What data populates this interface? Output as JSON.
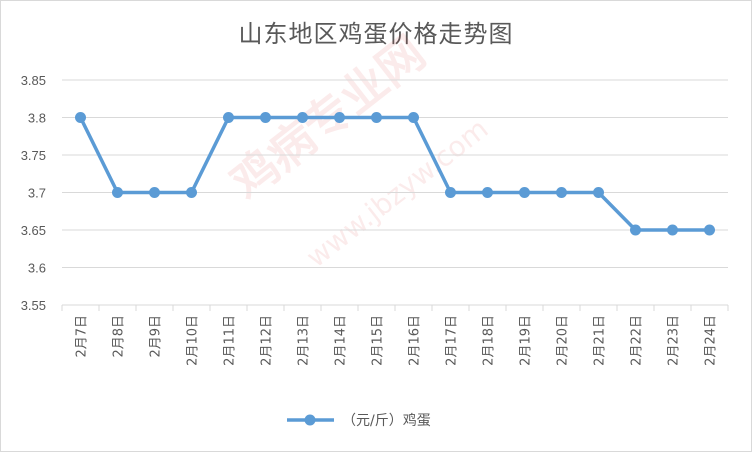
{
  "colors": {
    "line": "#5b9bd5",
    "grid": "#d9d9d9",
    "text": "#595959"
  },
  "watermark": {
    "main": "鸡病专业网",
    "sub": "www.jbzyw.com"
  },
  "chart_data": {
    "type": "line",
    "title": "山东地区鸡蛋价格走势图",
    "categories": [
      "2月7日",
      "2月8日",
      "2月9日",
      "2月10日",
      "2月11日",
      "2月12日",
      "2月13日",
      "2月14日",
      "2月15日",
      "2月16日",
      "2月17日",
      "2月18日",
      "2月19日",
      "2月20日",
      "2月21日",
      "2月22日",
      "2月23日",
      "2月24日"
    ],
    "series": [
      {
        "name": "（元/斤）鸡蛋",
        "values": [
          3.8,
          3.7,
          3.7,
          3.7,
          3.8,
          3.8,
          3.8,
          3.8,
          3.8,
          3.8,
          3.7,
          3.7,
          3.7,
          3.7,
          3.7,
          3.65,
          3.65,
          3.65
        ]
      }
    ],
    "ylim": [
      3.55,
      3.85
    ],
    "yticks": [
      "3.55",
      "3.6",
      "3.65",
      "3.7",
      "3.75",
      "3.8",
      "3.85"
    ],
    "grid": true,
    "legend": "bottom"
  }
}
